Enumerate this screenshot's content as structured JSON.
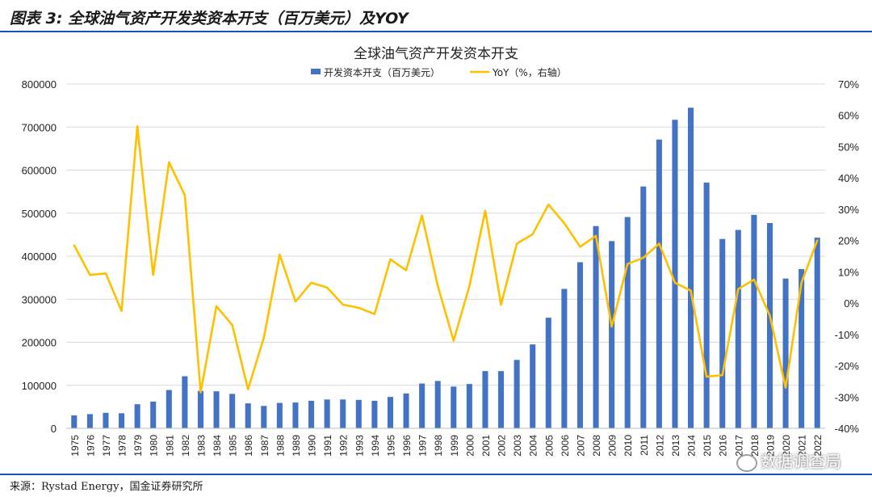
{
  "header": {
    "title": "图表 3:  全球油气资产开发类资本开支（百万美元）及YOY"
  },
  "source": "来源：Rystad Energy，国金证券研究所",
  "watermark": "数据调查局",
  "colors": {
    "bar": "#4472C4",
    "line": "#FFC000",
    "rule": "#1f4fbf"
  },
  "chart_data": {
    "type": "bar",
    "title": "全球油气资产开发资本开支",
    "categories": [
      "1975",
      "1976",
      "1977",
      "1978",
      "1979",
      "1980",
      "1981",
      "1982",
      "1983",
      "1984",
      "1985",
      "1986",
      "1987",
      "1988",
      "1989",
      "1990",
      "1991",
      "1992",
      "1993",
      "1994",
      "1995",
      "1996",
      "1997",
      "1998",
      "1999",
      "2000",
      "2001",
      "2002",
      "2003",
      "2004",
      "2005",
      "2006",
      "2007",
      "2008",
      "2009",
      "2010",
      "2011",
      "2012",
      "2013",
      "2014",
      "2015",
      "2016",
      "2017",
      "2018",
      "2019",
      "2020",
      "2021",
      "2022"
    ],
    "series": [
      {
        "name": "开发资本开支（百万美元）",
        "type": "bar",
        "axis": "left",
        "values": [
          30000,
          33000,
          36000,
          35000,
          56000,
          62000,
          89000,
          121000,
          87000,
          86000,
          80000,
          58000,
          52000,
          59000,
          60000,
          64000,
          67000,
          67000,
          66000,
          64000,
          73000,
          81000,
          104000,
          110000,
          97000,
          103000,
          133000,
          133000,
          159000,
          195000,
          257000,
          324000,
          386000,
          470000,
          435000,
          491000,
          562000,
          671000,
          717000,
          745000,
          571000,
          440000,
          461000,
          496000,
          477000,
          348000,
          370000,
          443000
        ]
      },
      {
        "name": "YoY（%，右轴）",
        "type": "line",
        "axis": "right",
        "values": [
          18.5,
          9,
          9.5,
          -2.5,
          56.5,
          9,
          45,
          34.5,
          -28.5,
          -1,
          -7,
          -27.5,
          -11,
          15.5,
          0.5,
          6.5,
          5,
          -0.5,
          -1.5,
          -3.5,
          14,
          10.5,
          28,
          5.5,
          -12,
          5.5,
          29.5,
          -0.5,
          19,
          22,
          31.5,
          25.5,
          18,
          21.5,
          -7.5,
          12.5,
          14.5,
          19,
          6.5,
          4,
          -23.5,
          -23,
          4.5,
          7.5,
          -4,
          -27,
          6.5,
          20
        ]
      }
    ],
    "y_left": {
      "min": 0,
      "max": 800000,
      "ticks": [
        "0",
        "100000",
        "200000",
        "300000",
        "400000",
        "500000",
        "600000",
        "700000",
        "800000"
      ]
    },
    "y_right": {
      "min": -40,
      "max": 70,
      "ticks": [
        "-40%",
        "-30%",
        "-20%",
        "-10%",
        "0%",
        "10%",
        "20%",
        "30%",
        "40%",
        "50%",
        "60%",
        "70%"
      ]
    },
    "grid": true,
    "legend": "top-center"
  }
}
